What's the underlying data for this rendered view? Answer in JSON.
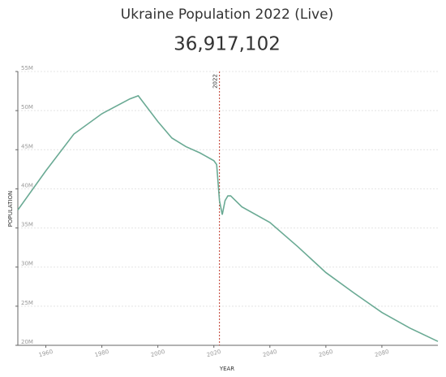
{
  "chart_data": {
    "type": "line",
    "title": "Ukraine Population 2022 (Live)",
    "subtitle": "36,917,102",
    "x_label": "YEAR",
    "y_label": "POPULATION",
    "x": [
      1950,
      1960,
      1970,
      1980,
      1990,
      1993,
      2000,
      2005,
      2010,
      2015,
      2020,
      2021,
      2022,
      2023,
      2024,
      2025,
      2026,
      2030,
      2040,
      2050,
      2060,
      2070,
      2080,
      2090,
      2100
    ],
    "values": [
      37.3,
      42.3,
      47.0,
      49.6,
      51.5,
      51.9,
      48.6,
      46.5,
      45.4,
      44.6,
      43.6,
      43.1,
      38.5,
      36.7,
      38.5,
      39.1,
      39.1,
      37.7,
      35.7,
      32.6,
      29.3,
      26.7,
      24.2,
      22.2,
      20.5
    ],
    "color": "#6aaa94",
    "marker_x": 2022,
    "marker_color": "#c0392b",
    "xlim": [
      1950,
      2100
    ],
    "xticks": [
      1960,
      1980,
      2000,
      2020,
      2040,
      2060,
      2080
    ],
    "ylim": [
      20,
      55
    ],
    "yticks": [
      {
        "value": 20,
        "label": "20M"
      },
      {
        "value": 25,
        "label": "25M"
      },
      {
        "value": 30,
        "label": "30M"
      },
      {
        "value": 35,
        "label": "35M"
      },
      {
        "value": 40,
        "label": "40M"
      },
      {
        "value": 45,
        "label": "45M"
      },
      {
        "value": 50,
        "label": "50M"
      },
      {
        "value": 55,
        "label": "55M"
      }
    ],
    "grid": true
  }
}
